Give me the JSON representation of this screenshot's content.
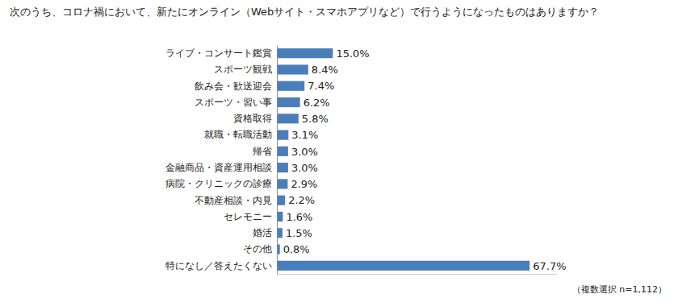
{
  "chart_data": {
    "type": "bar",
    "orientation": "horizontal",
    "title": "次のうち、コロナ禍において、新たにオンライン（Webサイト・スマホアプリなど）で行うようになったものはありますか？",
    "note": "（複数選択 n=1,112）",
    "categories": [
      "ライブ・コンサート鑑賞",
      "スポーツ観戦",
      "飲み会・歓送迎会",
      "スポーツ・習い事",
      "資格取得",
      "就職・転職活動",
      "帰省",
      "金融商品・資産運用相談",
      "病院・クリニックの診療",
      "不動産相談・内見",
      "セレモニー",
      "婚活",
      "その他",
      "特になし／答えたくない"
    ],
    "values": [
      15.0,
      8.4,
      7.4,
      6.2,
      5.8,
      3.1,
      3.0,
      3.0,
      2.9,
      2.2,
      1.6,
      1.5,
      0.8,
      67.7
    ],
    "value_labels": [
      "15.0%",
      "8.4%",
      "7.4%",
      "6.2%",
      "5.8%",
      "3.1%",
      "3.0%",
      "3.0%",
      "2.9%",
      "2.2%",
      "1.6%",
      "1.5%",
      "0.8%",
      "67.7%"
    ],
    "color": "#4a7ebb",
    "xlim": [
      0,
      75
    ],
    "grid": false,
    "data_labels": true,
    "tick_labels": "y"
  }
}
